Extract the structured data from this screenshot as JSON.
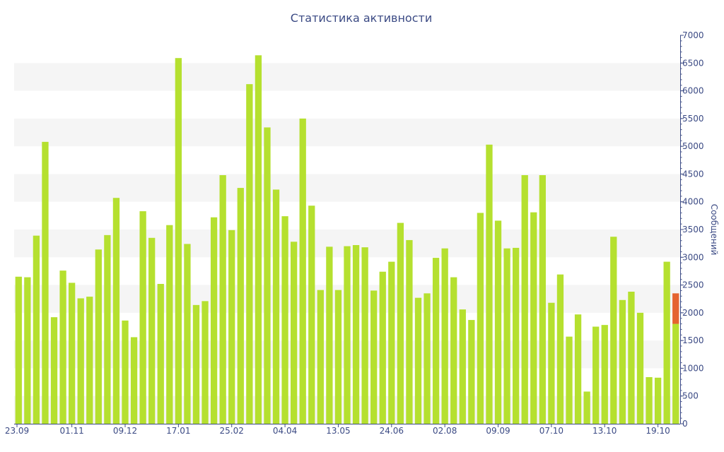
{
  "chart_data": {
    "type": "bar",
    "title": "Статистика активности",
    "ylabel": "Сообщений",
    "xlabel": "",
    "ylim": [
      0,
      7000
    ],
    "ytick_step": 500,
    "grid": "alternating horizontal bands",
    "colors": {
      "bar": "#b5e02f",
      "highlight": "#e5642f",
      "band": "#f5f5f5",
      "axis": "#3b4a84"
    },
    "x_tick_labels": [
      {
        "index": 0,
        "label": "23.09"
      },
      {
        "index": 6,
        "label": "01.11"
      },
      {
        "index": 12,
        "label": "09.12"
      },
      {
        "index": 18,
        "label": "17.01"
      },
      {
        "index": 24,
        "label": "25.02"
      },
      {
        "index": 30,
        "label": "04.04"
      },
      {
        "index": 36,
        "label": "13.05"
      },
      {
        "index": 42,
        "label": "24.06"
      },
      {
        "index": 48,
        "label": "02.08"
      },
      {
        "index": 54,
        "label": "09.09"
      },
      {
        "index": 60,
        "label": "07.10"
      },
      {
        "index": 66,
        "label": "13.10"
      },
      {
        "index": 72,
        "label": "19.10"
      }
    ],
    "series": [
      {
        "values": [
          2650,
          2640,
          3390,
          5080,
          1920,
          2760,
          2540,
          2260,
          2290,
          3140,
          3400,
          4070,
          1860,
          1560,
          3830,
          3350,
          2520,
          3580,
          6590,
          3240,
          2140,
          2210,
          3720,
          4480,
          3490,
          4250,
          6120,
          6640,
          5340,
          4220,
          3740,
          3280,
          5500,
          3930,
          2410,
          3190,
          2410,
          3200,
          3220,
          3180,
          2400,
          2740,
          2920,
          3620,
          3310,
          2270,
          2350,
          2990,
          3160,
          2640,
          2060,
          1870,
          3800,
          5030,
          3660,
          3160,
          3170,
          4480,
          3810,
          4480,
          2180,
          2690,
          1570,
          1970,
          580,
          1750,
          1780,
          3370,
          2230,
          2380,
          2000,
          840,
          830,
          2920,
          1800
        ]
      },
      {
        "values": [
          0,
          0,
          0,
          0,
          0,
          0,
          0,
          0,
          0,
          0,
          0,
          0,
          0,
          0,
          0,
          0,
          0,
          0,
          0,
          0,
          0,
          0,
          0,
          0,
          0,
          0,
          0,
          0,
          0,
          0,
          0,
          0,
          0,
          0,
          0,
          0,
          0,
          0,
          0,
          0,
          0,
          0,
          0,
          0,
          0,
          0,
          0,
          0,
          0,
          0,
          0,
          0,
          0,
          0,
          0,
          0,
          0,
          0,
          0,
          0,
          0,
          0,
          0,
          0,
          0,
          0,
          0,
          0,
          0,
          0,
          0,
          0,
          0,
          0,
          550
        ]
      }
    ]
  }
}
